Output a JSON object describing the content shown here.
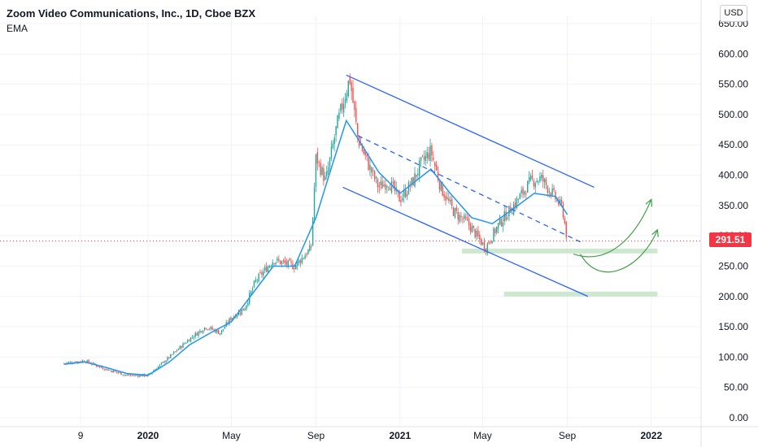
{
  "header": {
    "title": "Zoom Video Communications, Inc., 1D, Cboe BZX",
    "indicator": "EMA",
    "currency_button": "USD"
  },
  "last_price": "291.51",
  "colors": {
    "up": "#26a69a",
    "down": "#ef5350",
    "ema": "#2196f3",
    "channel": "#2962ff",
    "support_zone": "#c8e6c9",
    "projection": "#43a047",
    "price_line": "#f23645"
  },
  "chart_data": {
    "type": "candlestick",
    "y_axis": {
      "ticks": [
        "0.00",
        "50.00",
        "100.00",
        "150.00",
        "200.00",
        "250.00",
        "300.00",
        "350.00",
        "400.00",
        "450.00",
        "500.00",
        "550.00",
        "600.00",
        "650.00"
      ],
      "range": [
        0,
        650
      ]
    },
    "x_axis": {
      "ticks": [
        "9",
        "2020",
        "May",
        "Sep",
        "2021",
        "May",
        "Sep",
        "2022"
      ],
      "bold_ticks": [
        "2020",
        "2021",
        "2022"
      ]
    },
    "close_path": [
      [
        "2019-09-01",
        90
      ],
      [
        "2019-10-01",
        94
      ],
      [
        "2019-11-01",
        80
      ],
      [
        "2019-12-01",
        70
      ],
      [
        "2020-01-01",
        70
      ],
      [
        "2020-02-01",
        100
      ],
      [
        "2020-03-01",
        130
      ],
      [
        "2020-03-25",
        150
      ],
      [
        "2020-04-15",
        140
      ],
      [
        "2020-05-01",
        165
      ],
      [
        "2020-05-20",
        180
      ],
      [
        "2020-06-05",
        225
      ],
      [
        "2020-07-01",
        260
      ],
      [
        "2020-08-01",
        250
      ],
      [
        "2020-08-25",
        280
      ],
      [
        "2020-09-01",
        430
      ],
      [
        "2020-09-15",
        390
      ],
      [
        "2020-10-01",
        480
      ],
      [
        "2020-10-15",
        540
      ],
      [
        "2020-10-20",
        560
      ],
      [
        "2020-11-01",
        460
      ],
      [
        "2020-11-15",
        420
      ],
      [
        "2020-12-01",
        380
      ],
      [
        "2020-12-15",
        390
      ],
      [
        "2021-01-01",
        360
      ],
      [
        "2021-01-20",
        390
      ],
      [
        "2021-02-01",
        420
      ],
      [
        "2021-02-15",
        440
      ],
      [
        "2021-03-01",
        380
      ],
      [
        "2021-03-20",
        340
      ],
      [
        "2021-04-10",
        320
      ],
      [
        "2021-05-05",
        280
      ],
      [
        "2021-05-25",
        320
      ],
      [
        "2021-06-15",
        350
      ],
      [
        "2021-07-10",
        390
      ],
      [
        "2021-07-25",
        395
      ],
      [
        "2021-08-10",
        370
      ],
      [
        "2021-08-25",
        345
      ],
      [
        "2021-09-01",
        291.51
      ]
    ],
    "ema_path": [
      [
        "2019-09-01",
        88
      ],
      [
        "2019-10-01",
        92
      ],
      [
        "2019-11-01",
        83
      ],
      [
        "2019-12-01",
        73
      ],
      [
        "2020-01-01",
        70
      ],
      [
        "2020-02-01",
        92
      ],
      [
        "2020-03-01",
        120
      ],
      [
        "2020-04-01",
        140
      ],
      [
        "2020-05-01",
        158
      ],
      [
        "2020-06-01",
        205
      ],
      [
        "2020-07-01",
        250
      ],
      [
        "2020-08-01",
        250
      ],
      [
        "2020-09-01",
        330
      ],
      [
        "2020-09-20",
        400
      ],
      [
        "2020-10-15",
        490
      ],
      [
        "2020-11-01",
        460
      ],
      [
        "2020-12-01",
        405
      ],
      [
        "2021-01-01",
        370
      ],
      [
        "2021-02-15",
        410
      ],
      [
        "2021-03-15",
        370
      ],
      [
        "2021-04-15",
        330
      ],
      [
        "2021-05-15",
        320
      ],
      [
        "2021-06-15",
        345
      ],
      [
        "2021-07-15",
        370
      ],
      [
        "2021-08-15",
        365
      ],
      [
        "2021-09-01",
        335
      ]
    ],
    "channel_lines": [
      {
        "name": "upper",
        "from": [
          "2020-10-15",
          565
        ],
        "to": [
          "2021-10-10",
          380
        ],
        "dashed": false
      },
      {
        "name": "middle",
        "from": [
          "2020-11-01",
          465
        ],
        "to": [
          "2021-09-20",
          290
        ],
        "dashed": true
      },
      {
        "name": "lower",
        "from": [
          "2020-10-10",
          380
        ],
        "to": [
          "2021-10-01",
          200
        ],
        "dashed": false
      }
    ],
    "support_zones": [
      {
        "level": 275,
        "from": "2021-04-01",
        "to": "2022-01-10"
      },
      {
        "level": 204,
        "from": "2021-06-01",
        "to": "2022-01-10"
      }
    ],
    "projections": [
      {
        "points": [
          [
            "2021-09-10",
            270
          ],
          [
            "2021-11-01",
            250
          ],
          [
            "2021-12-10",
            300
          ],
          [
            "2022-01-01",
            360
          ]
        ]
      },
      {
        "points": [
          [
            "2021-09-20",
            270
          ],
          [
            "2021-10-20",
            210
          ],
          [
            "2021-12-20",
            250
          ],
          [
            "2022-01-10",
            310
          ]
        ]
      }
    ]
  }
}
